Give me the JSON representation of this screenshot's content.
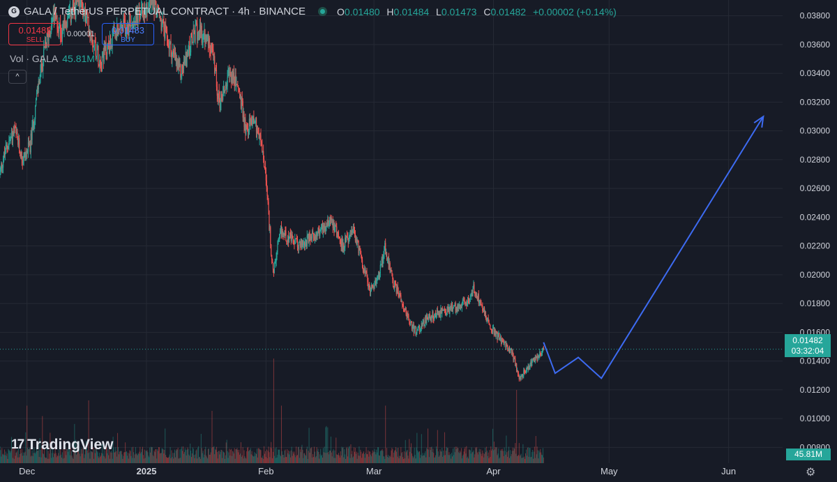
{
  "header": {
    "symbol_title": "GALA / TetherUS PERPETUAL CONTRACT · 4h · BINANCE",
    "logo_glyph": "G",
    "ohlc": {
      "o_label": "O",
      "o": "0.01480",
      "h_label": "H",
      "h": "0.01484",
      "l_label": "L",
      "l": "0.01473",
      "c_label": "C",
      "c": "0.01482",
      "change": "+0.00002 (+0.14%)"
    }
  },
  "trade": {
    "sell_price": "0.01482",
    "sell_label": "SELL",
    "spread": "0.00001",
    "buy_price": "0.01483",
    "buy_label": "BUY"
  },
  "volume_legend": {
    "label": "Vol · GALA",
    "value": "45.81M"
  },
  "collapse_glyph": "^",
  "brand": {
    "mark": "17",
    "name": "TradingView"
  },
  "price_tag": {
    "price": "0.01482",
    "countdown": "03:32:04"
  },
  "volume_tag": "45.81M",
  "settings_glyph": "⚙",
  "colors": {
    "up": "#26a69a",
    "down": "#ef5350",
    "projection": "#3d6bf2",
    "background": "#171b26",
    "grid": "#262a35"
  },
  "chart_data": {
    "type": "candlestick",
    "interval": "4h",
    "y_axis": {
      "min": 0.0069,
      "max": 0.0391,
      "ticks": [
        "0.03800",
        "0.03600",
        "0.03400",
        "0.03200",
        "0.03000",
        "0.02800",
        "0.02600",
        "0.02400",
        "0.02200",
        "0.02000",
        "0.01800",
        "0.01600",
        "0.01400",
        "0.01200",
        "0.01000",
        "0.00800"
      ]
    },
    "x_axis": {
      "start": "2024-11-24",
      "end": "2025-06-15",
      "ticks": [
        {
          "date": "2024-12-01",
          "label": "Dec",
          "bold": false
        },
        {
          "date": "2025-01-01",
          "label": "2025",
          "bold": true
        },
        {
          "date": "2025-02-01",
          "label": "Feb",
          "bold": false
        },
        {
          "date": "2025-03-01",
          "label": "Mar",
          "bold": false
        },
        {
          "date": "2025-04-01",
          "label": "Apr",
          "bold": false
        },
        {
          "date": "2025-05-01",
          "label": "May",
          "bold": false
        },
        {
          "date": "2025-06-01",
          "label": "Jun",
          "bold": false
        }
      ]
    },
    "last_price": 0.01482,
    "last_date": "2025-04-14",
    "price_path": [
      [
        "2024-11-24",
        0.027
      ],
      [
        "2024-11-26",
        0.029
      ],
      [
        "2024-11-28",
        0.03
      ],
      [
        "2024-11-30",
        0.028
      ],
      [
        "2024-12-02",
        0.029
      ],
      [
        "2024-12-04",
        0.033
      ],
      [
        "2024-12-06",
        0.036
      ],
      [
        "2024-12-08",
        0.038
      ],
      [
        "2024-12-10",
        0.037
      ],
      [
        "2024-12-15",
        0.039
      ],
      [
        "2024-12-20",
        0.035
      ],
      [
        "2024-12-25",
        0.037
      ],
      [
        "2024-12-30",
        0.038
      ],
      [
        "2025-01-03",
        0.039
      ],
      [
        "2025-01-07",
        0.036
      ],
      [
        "2025-01-10",
        0.034
      ],
      [
        "2025-01-14",
        0.037
      ],
      [
        "2025-01-18",
        0.036
      ],
      [
        "2025-01-20",
        0.032
      ],
      [
        "2025-01-23",
        0.034
      ],
      [
        "2025-01-25",
        0.033
      ],
      [
        "2025-01-27",
        0.03
      ],
      [
        "2025-01-29",
        0.031
      ],
      [
        "2025-01-31",
        0.029
      ],
      [
        "2025-02-01",
        0.027
      ],
      [
        "2025-02-03",
        0.02
      ],
      [
        "2025-02-05",
        0.023
      ],
      [
        "2025-02-10",
        0.022
      ],
      [
        "2025-02-15",
        0.023
      ],
      [
        "2025-02-18",
        0.024
      ],
      [
        "2025-02-21",
        0.022
      ],
      [
        "2025-02-24",
        0.023
      ],
      [
        "2025-02-26",
        0.021
      ],
      [
        "2025-02-28",
        0.019
      ],
      [
        "2025-03-02",
        0.0195
      ],
      [
        "2025-03-04",
        0.022
      ],
      [
        "2025-03-06",
        0.0195
      ],
      [
        "2025-03-08",
        0.0185
      ],
      [
        "2025-03-10",
        0.017
      ],
      [
        "2025-03-12",
        0.016
      ],
      [
        "2025-03-15",
        0.017
      ],
      [
        "2025-03-20",
        0.0175
      ],
      [
        "2025-03-25",
        0.018
      ],
      [
        "2025-03-27",
        0.019
      ],
      [
        "2025-03-29",
        0.018
      ],
      [
        "2025-03-31",
        0.0165
      ],
      [
        "2025-04-03",
        0.0155
      ],
      [
        "2025-04-06",
        0.0145
      ],
      [
        "2025-04-08",
        0.0128
      ],
      [
        "2025-04-10",
        0.0135
      ],
      [
        "2025-04-12",
        0.0142
      ],
      [
        "2025-04-14",
        0.0148
      ]
    ],
    "volume_spikes": [
      [
        "2024-12-01",
        0.55
      ],
      [
        "2024-12-05",
        0.45
      ],
      [
        "2024-12-17",
        0.6
      ],
      [
        "2025-01-18",
        0.5
      ],
      [
        "2025-02-03",
        1.0
      ],
      [
        "2025-02-05",
        0.55
      ],
      [
        "2025-03-04",
        0.55
      ],
      [
        "2025-04-07",
        0.7
      ]
    ],
    "projection": [
      [
        "2025-04-14",
        0.0153
      ],
      [
        "2025-04-17",
        0.01315
      ],
      [
        "2025-04-23",
        0.01425
      ],
      [
        "2025-04-29",
        0.0128
      ],
      [
        "2025-06-10",
        0.031
      ]
    ]
  }
}
